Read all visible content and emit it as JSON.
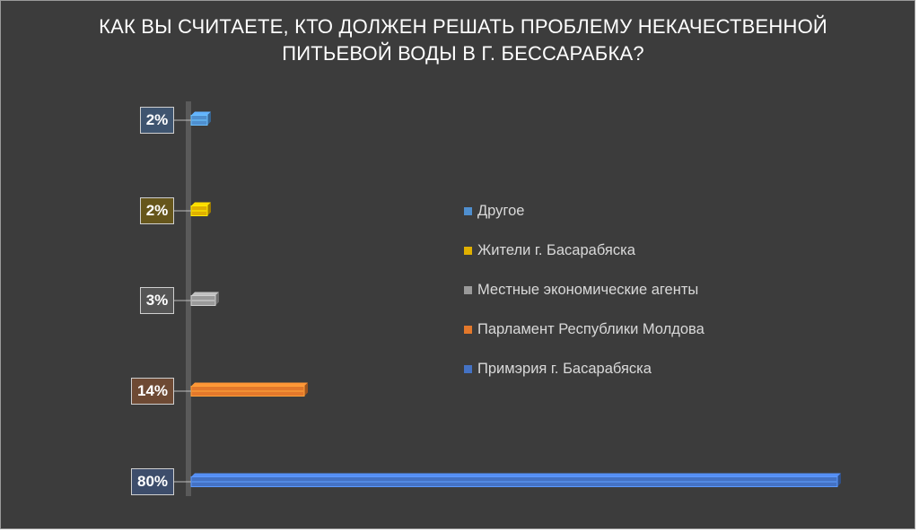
{
  "chart_data": {
    "type": "bar",
    "orientation": "horizontal",
    "title_lines": [
      "КАК ВЫ СЧИТАЕТЕ, КТО ДОЛЖЕН РЕШАТЬ ПРОБЛЕМУ НЕКАЧЕСТВЕННОЙ",
      "ПИТЬЕВОЙ ВОДЫ В Г. БЕССАРАБКА?"
    ],
    "xlim": [
      0,
      80
    ],
    "grid": false,
    "legend_position": "right",
    "value_unit": "%",
    "series": [
      {
        "name": "Другое",
        "value": 2,
        "label": "2%",
        "color": "#4f8fcf",
        "label_bg": "#3f5570"
      },
      {
        "name": "Жители г. Басарабяска",
        "value": 2,
        "label": "2%",
        "color": "#e0b000",
        "label_bg": "#66561c"
      },
      {
        "name": "Местные экономические агенты",
        "value": 3,
        "label": "3%",
        "color": "#9a9a9a",
        "label_bg": "#555555"
      },
      {
        "name": "Парламент Республики Молдова",
        "value": 14,
        "label": "14%",
        "color": "#e3782b",
        "label_bg": "#6e4a34"
      },
      {
        "name": "Примэрия г. Басарабяска",
        "value": 80,
        "label": "80%",
        "color": "#4472c4",
        "label_bg": "#3d4d6b"
      }
    ]
  }
}
